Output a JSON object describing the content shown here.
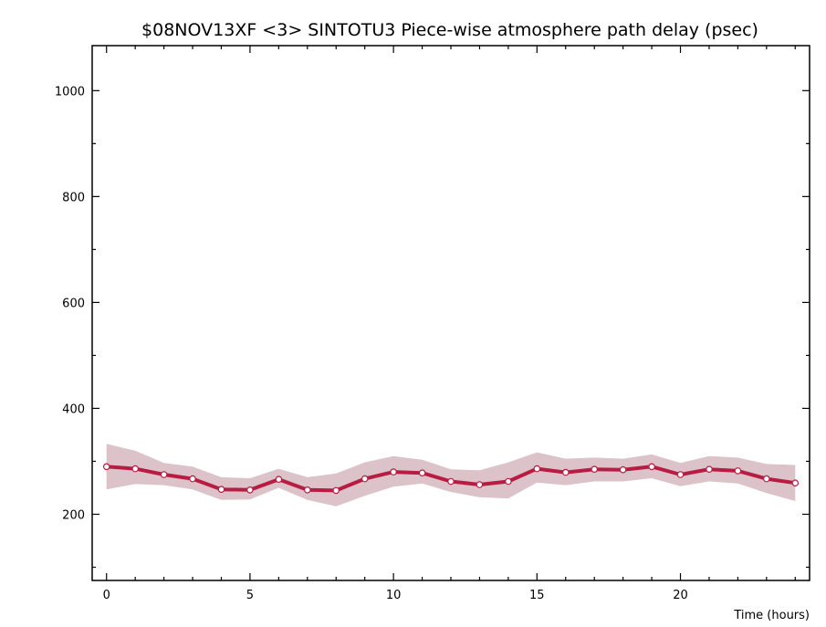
{
  "chart_data": {
    "type": "line",
    "title": "$08NOV13XF <3>  SINTOTU3  Piece-wise atmosphere path delay (psec)",
    "xlabel": "Time (hours)",
    "ylabel": "",
    "xlim": [
      -0.5,
      24.5
    ],
    "ylim": [
      75,
      1085
    ],
    "x_ticks": [
      0,
      5,
      10,
      15,
      20
    ],
    "x_tick_labels": [
      "0",
      "5",
      "10",
      "15",
      "20"
    ],
    "y_ticks": [
      200,
      400,
      600,
      800,
      1000
    ],
    "y_tick_labels": [
      "200",
      "400",
      "600",
      "800",
      "1000"
    ],
    "grid": false,
    "legend": "none",
    "series": [
      {
        "x": [
          0,
          1,
          2,
          3,
          4,
          5,
          6,
          7,
          8,
          9,
          10,
          11,
          12,
          13,
          14,
          15,
          16,
          17,
          18,
          19,
          20,
          21,
          22,
          23,
          24
        ],
        "y": [
          290,
          286,
          275,
          267,
          247,
          246,
          266,
          246,
          245,
          267,
          280,
          278,
          262,
          256,
          262,
          286,
          279,
          285,
          284,
          290,
          275,
          285,
          282,
          267,
          259
        ],
        "upper": [
          333,
          320,
          297,
          290,
          270,
          268,
          286,
          270,
          277,
          298,
          310,
          303,
          285,
          283,
          298,
          317,
          305,
          307,
          305,
          313,
          297,
          310,
          307,
          295,
          293
        ],
        "lower": [
          247,
          257,
          255,
          247,
          227,
          228,
          250,
          227,
          215,
          235,
          252,
          258,
          242,
          232,
          230,
          260,
          255,
          262,
          262,
          268,
          253,
          262,
          258,
          240,
          225
        ]
      }
    ],
    "colors": {
      "line": "#b81c42",
      "band": "#dbc3c9",
      "marker_fill": "#ffffff",
      "axis": "#000000"
    }
  }
}
